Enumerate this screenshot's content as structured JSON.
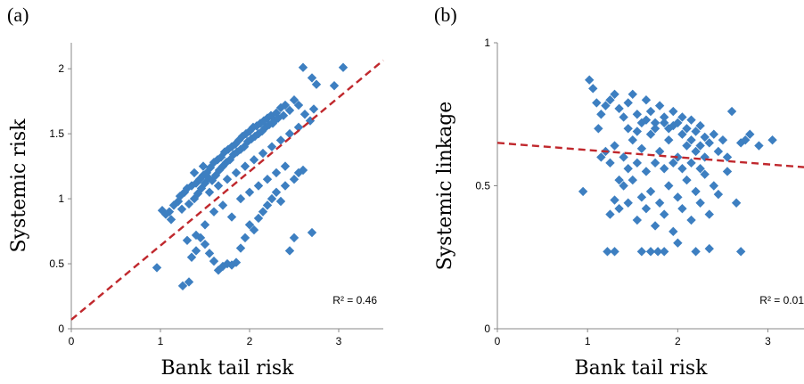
{
  "chart_data": [
    {
      "panel": "(a)",
      "type": "scatter",
      "xlabel": "Bank tail risk",
      "ylabel": "Systemic risk",
      "xlim": [
        0,
        3.5
      ],
      "ylim": [
        0,
        2.2
      ],
      "xticks": [
        "0",
        "1",
        "2",
        "3"
      ],
      "yticks": [
        "0",
        "0.5",
        "1",
        "1.5",
        "2"
      ],
      "annotation": "R² = 0.46",
      "trendline": {
        "slope": 0.57,
        "intercept": 0.07
      },
      "marker_color": "#3d7fc1",
      "trend_color": "#c0282d",
      "points": [
        [
          0.96,
          0.47
        ],
        [
          1.02,
          0.91
        ],
        [
          1.06,
          0.88
        ],
        [
          1.1,
          0.9
        ],
        [
          1.12,
          0.84
        ],
        [
          1.15,
          0.95
        ],
        [
          1.2,
          0.98
        ],
        [
          1.22,
          1.02
        ],
        [
          1.24,
          0.92
        ],
        [
          1.27,
          1.05
        ],
        [
          1.3,
          1.08
        ],
        [
          1.32,
          0.96
        ],
        [
          1.35,
          1.1
        ],
        [
          1.38,
          1.0
        ],
        [
          1.4,
          1.12
        ],
        [
          1.42,
          1.04
        ],
        [
          1.44,
          1.15
        ],
        [
          1.46,
          1.08
        ],
        [
          1.48,
          1.18
        ],
        [
          1.5,
          1.12
        ],
        [
          1.52,
          1.2
        ],
        [
          1.54,
          1.16
        ],
        [
          1.56,
          1.24
        ],
        [
          1.58,
          1.14
        ],
        [
          1.6,
          1.28
        ],
        [
          1.62,
          1.18
        ],
        [
          1.64,
          1.3
        ],
        [
          1.66,
          1.22
        ],
        [
          1.68,
          1.32
        ],
        [
          1.7,
          1.25
        ],
        [
          1.72,
          1.36
        ],
        [
          1.74,
          1.28
        ],
        [
          1.76,
          1.38
        ],
        [
          1.78,
          1.3
        ],
        [
          1.8,
          1.4
        ],
        [
          1.82,
          1.34
        ],
        [
          1.84,
          1.42
        ],
        [
          1.86,
          1.36
        ],
        [
          1.88,
          1.45
        ],
        [
          1.9,
          1.38
        ],
        [
          1.92,
          1.48
        ],
        [
          1.94,
          1.4
        ],
        [
          1.96,
          1.5
        ],
        [
          1.98,
          1.44
        ],
        [
          2.0,
          1.52
        ],
        [
          2.02,
          1.46
        ],
        [
          2.04,
          1.55
        ],
        [
          2.06,
          1.48
        ],
        [
          2.08,
          1.56
        ],
        [
          2.1,
          1.5
        ],
        [
          2.12,
          1.58
        ],
        [
          2.14,
          1.52
        ],
        [
          2.16,
          1.6
        ],
        [
          2.18,
          1.55
        ],
        [
          2.2,
          1.62
        ],
        [
          2.22,
          1.57
        ],
        [
          2.24,
          1.64
        ],
        [
          2.26,
          1.58
        ],
        [
          2.28,
          1.6
        ],
        [
          2.3,
          1.66
        ],
        [
          2.32,
          1.62
        ],
        [
          2.35,
          1.7
        ],
        [
          2.38,
          1.64
        ],
        [
          2.4,
          1.72
        ],
        [
          2.45,
          1.68
        ],
        [
          2.5,
          1.76
        ],
        [
          2.55,
          1.72
        ],
        [
          2.6,
          2.01
        ],
        [
          2.7,
          1.93
        ],
        [
          2.75,
          1.88
        ],
        [
          2.95,
          1.87
        ],
        [
          3.05,
          2.01
        ],
        [
          1.25,
          0.33
        ],
        [
          1.32,
          0.36
        ],
        [
          1.35,
          0.55
        ],
        [
          1.4,
          0.6
        ],
        [
          1.45,
          0.7
        ],
        [
          1.5,
          0.65
        ],
        [
          1.55,
          0.58
        ],
        [
          1.6,
          0.52
        ],
        [
          1.65,
          0.45
        ],
        [
          1.7,
          0.48
        ],
        [
          1.75,
          0.5
        ],
        [
          1.8,
          0.49
        ],
        [
          1.85,
          0.51
        ],
        [
          1.9,
          0.62
        ],
        [
          1.95,
          0.7
        ],
        [
          2.0,
          0.8
        ],
        [
          2.05,
          0.76
        ],
        [
          2.1,
          0.85
        ],
        [
          2.15,
          0.9
        ],
        [
          2.2,
          0.95
        ],
        [
          2.25,
          1.0
        ],
        [
          2.3,
          1.05
        ],
        [
          2.35,
          0.98
        ],
        [
          2.4,
          1.1
        ],
        [
          2.45,
          0.6
        ],
        [
          2.5,
          1.15
        ],
        [
          2.55,
          1.2
        ],
        [
          2.6,
          1.22
        ],
        [
          2.7,
          0.74
        ],
        [
          1.3,
          0.68
        ],
        [
          1.4,
          0.72
        ],
        [
          1.5,
          0.8
        ],
        [
          1.6,
          0.9
        ],
        [
          1.7,
          0.95
        ],
        [
          1.8,
          0.86
        ],
        [
          1.9,
          1.0
        ],
        [
          2.0,
          1.05
        ],
        [
          2.1,
          1.1
        ],
        [
          2.2,
          1.15
        ],
        [
          2.3,
          1.2
        ],
        [
          2.4,
          1.25
        ],
        [
          2.5,
          0.7
        ],
        [
          1.55,
          1.05
        ],
        [
          1.65,
          1.1
        ],
        [
          1.75,
          1.15
        ],
        [
          1.85,
          1.2
        ],
        [
          1.95,
          1.25
        ],
        [
          2.05,
          1.3
        ],
        [
          2.15,
          1.35
        ],
        [
          2.25,
          1.4
        ],
        [
          2.35,
          1.45
        ],
        [
          2.45,
          1.5
        ],
        [
          2.55,
          1.55
        ],
        [
          2.62,
          1.65
        ],
        [
          2.68,
          1.6
        ],
        [
          2.72,
          1.69
        ],
        [
          1.38,
          1.2
        ],
        [
          1.48,
          1.25
        ]
      ]
    },
    {
      "panel": "(b)",
      "type": "scatter",
      "xlabel": "Bank tail risk",
      "ylabel": "Systemic linkage",
      "xlim": [
        0,
        3.4
      ],
      "ylim": [
        0,
        1
      ],
      "xticks": [
        "0",
        "1",
        "2",
        "3"
      ],
      "yticks": [
        "0",
        "0.5",
        "1"
      ],
      "annotation": "R² = 0.01",
      "trendline": {
        "slope": -0.025,
        "intercept": 0.65
      },
      "marker_color": "#3d7fc1",
      "trend_color": "#c0282d",
      "points": [
        [
          0.95,
          0.48
        ],
        [
          1.02,
          0.87
        ],
        [
          1.06,
          0.84
        ],
        [
          1.1,
          0.79
        ],
        [
          1.12,
          0.7
        ],
        [
          1.15,
          0.75
        ],
        [
          1.2,
          0.78
        ],
        [
          1.25,
          0.8
        ],
        [
          1.3,
          0.82
        ],
        [
          1.35,
          0.77
        ],
        [
          1.4,
          0.74
        ],
        [
          1.45,
          0.79
        ],
        [
          1.5,
          0.82
        ],
        [
          1.55,
          0.75
        ],
        [
          1.6,
          0.72
        ],
        [
          1.65,
          0.8
        ],
        [
          1.7,
          0.76
        ],
        [
          1.75,
          0.72
        ],
        [
          1.8,
          0.78
        ],
        [
          1.85,
          0.74
        ],
        [
          1.9,
          0.7
        ],
        [
          1.95,
          0.76
        ],
        [
          2.0,
          0.72
        ],
        [
          2.05,
          0.74
        ],
        [
          2.1,
          0.7
        ],
        [
          2.15,
          0.73
        ],
        [
          2.2,
          0.69
        ],
        [
          2.25,
          0.71
        ],
        [
          2.3,
          0.67
        ],
        [
          2.35,
          0.65
        ],
        [
          2.4,
          0.68
        ],
        [
          2.5,
          0.66
        ],
        [
          2.6,
          0.76
        ],
        [
          2.7,
          0.65
        ],
        [
          2.8,
          0.68
        ],
        [
          2.9,
          0.64
        ],
        [
          3.05,
          0.66
        ],
        [
          1.22,
          0.27
        ],
        [
          1.3,
          0.27
        ],
        [
          1.6,
          0.27
        ],
        [
          1.7,
          0.27
        ],
        [
          1.78,
          0.27
        ],
        [
          1.85,
          0.27
        ],
        [
          2.0,
          0.3
        ],
        [
          2.2,
          0.27
        ],
        [
          2.35,
          0.28
        ],
        [
          2.7,
          0.27
        ],
        [
          1.25,
          0.4
        ],
        [
          1.3,
          0.45
        ],
        [
          1.35,
          0.42
        ],
        [
          1.4,
          0.5
        ],
        [
          1.45,
          0.44
        ],
        [
          1.5,
          0.52
        ],
        [
          1.55,
          0.38
        ],
        [
          1.6,
          0.46
        ],
        [
          1.65,
          0.42
        ],
        [
          1.7,
          0.48
        ],
        [
          1.75,
          0.36
        ],
        [
          1.8,
          0.44
        ],
        [
          1.85,
          0.4
        ],
        [
          1.9,
          0.5
        ],
        [
          1.95,
          0.34
        ],
        [
          2.0,
          0.46
        ],
        [
          2.05,
          0.42
        ],
        [
          2.1,
          0.52
        ],
        [
          2.15,
          0.38
        ],
        [
          2.2,
          0.48
        ],
        [
          2.25,
          0.44
        ],
        [
          2.3,
          0.54
        ],
        [
          2.35,
          0.4
        ],
        [
          2.4,
          0.5
        ],
        [
          2.45,
          0.47
        ],
        [
          2.55,
          0.55
        ],
        [
          2.65,
          0.44
        ],
        [
          1.2,
          0.62
        ],
        [
          1.3,
          0.64
        ],
        [
          1.4,
          0.6
        ],
        [
          1.5,
          0.66
        ],
        [
          1.6,
          0.63
        ],
        [
          1.7,
          0.68
        ],
        [
          1.8,
          0.62
        ],
        [
          1.9,
          0.66
        ],
        [
          2.0,
          0.6
        ],
        [
          2.1,
          0.64
        ],
        [
          2.2,
          0.62
        ],
        [
          2.3,
          0.6
        ],
        [
          1.75,
          0.7
        ],
        [
          1.85,
          0.72
        ],
        [
          1.95,
          0.71
        ],
        [
          2.05,
          0.68
        ],
        [
          2.15,
          0.66
        ],
        [
          2.25,
          0.64
        ],
        [
          1.45,
          0.7
        ],
        [
          1.55,
          0.69
        ],
        [
          1.65,
          0.73
        ],
        [
          1.35,
          0.52
        ],
        [
          1.45,
          0.56
        ],
        [
          1.55,
          0.58
        ],
        [
          1.65,
          0.55
        ],
        [
          1.75,
          0.58
        ],
        [
          1.85,
          0.56
        ],
        [
          1.95,
          0.58
        ],
        [
          2.05,
          0.56
        ],
        [
          2.15,
          0.58
        ],
        [
          2.25,
          0.56
        ],
        [
          1.15,
          0.6
        ],
        [
          1.25,
          0.58
        ],
        [
          2.45,
          0.62
        ],
        [
          2.55,
          0.6
        ],
        [
          2.75,
          0.66
        ]
      ]
    }
  ]
}
